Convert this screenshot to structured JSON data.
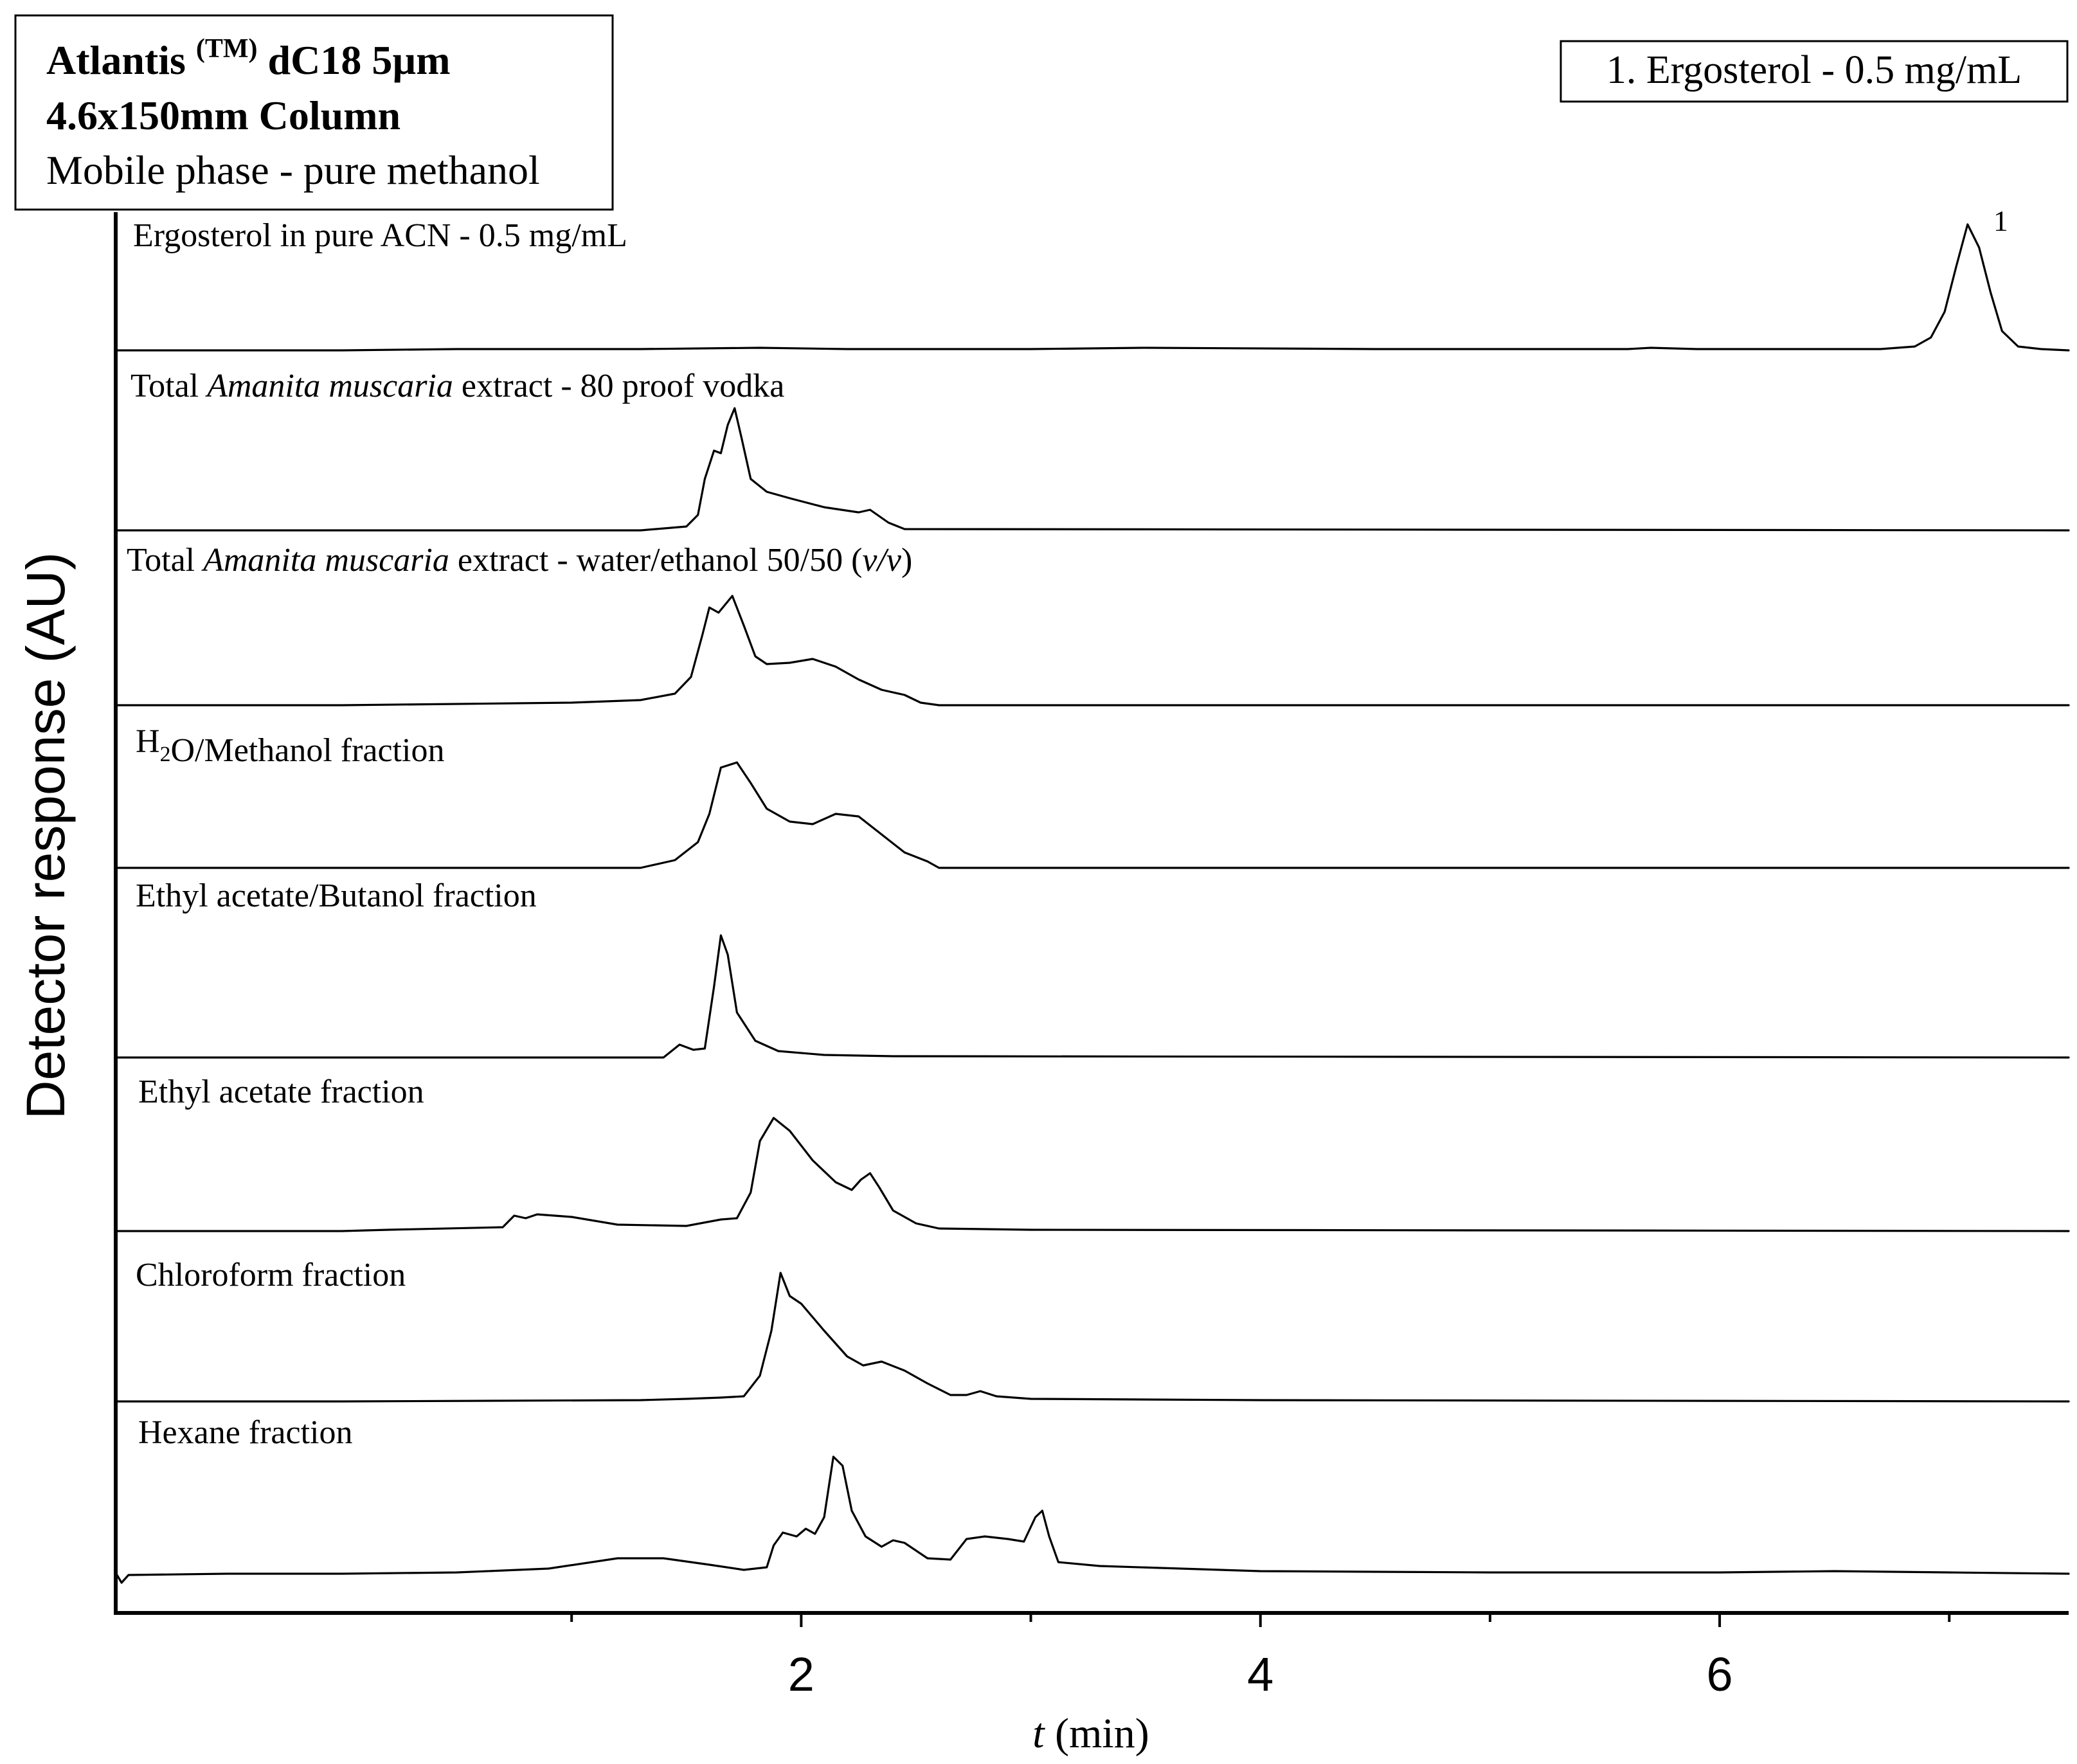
{
  "chart_data": {
    "type": "line",
    "title": "",
    "xlabel_var": "t",
    "xlabel_unit": " (min)",
    "ylabel": "Detector response (AU)",
    "xlim": [
      -0.98,
      7.52
    ],
    "x_ticks": [
      2,
      4,
      6
    ],
    "x_tick_labels": [
      "2",
      "4",
      "6"
    ],
    "x_minor_ticks": [
      1,
      3,
      5,
      7
    ],
    "column_box": {
      "line1_name": "Atlantis ",
      "line1_sup": "(TM)",
      "line1_rest": " dC18 5µm",
      "line2": "4.6x150mm Column",
      "line3": "Mobile phase - pure methanol"
    },
    "legend": {
      "text": "1. Ergosterol - 0.5 mg/mL",
      "placement": "top-right"
    },
    "series": [
      {
        "name": "Ergosterol in pure ACN - 0.5 mg/mL",
        "label_parts": [
          {
            "text": "Ergosterol in pure ACN - 0.5 mg/mL"
          }
        ],
        "peak_label": "1",
        "points": [
          [
            0,
            0
          ],
          [
            0.5,
            0.01
          ],
          [
            1.3,
            0.01
          ],
          [
            1.82,
            0.02
          ],
          [
            2.2,
            0.01
          ],
          [
            3,
            0.01
          ],
          [
            3.5,
            0.02
          ],
          [
            4.5,
            0.01
          ],
          [
            5.6,
            0.01
          ],
          [
            5.7,
            0.02
          ],
          [
            5.9,
            0.01
          ],
          [
            6.7,
            0.01
          ],
          [
            6.85,
            0.03
          ],
          [
            6.92,
            0.1
          ],
          [
            6.98,
            0.3
          ],
          [
            7.03,
            0.65
          ],
          [
            7.08,
            0.98
          ],
          [
            7.13,
            0.8
          ],
          [
            7.18,
            0.45
          ],
          [
            7.23,
            0.15
          ],
          [
            7.3,
            0.03
          ],
          [
            7.4,
            0.01
          ],
          [
            7.52,
            0.0
          ]
        ]
      },
      {
        "name": "Total Amanita muscaria extract - 80 proof vodka",
        "label_parts": [
          {
            "text": "Total "
          },
          {
            "text": "Amanita muscaria",
            "italic": true
          },
          {
            "text": " extract - 80 proof vodka"
          }
        ],
        "peak_label": "",
        "points": [
          [
            0,
            0
          ],
          [
            1.3,
            0
          ],
          [
            1.5,
            0.03
          ],
          [
            1.55,
            0.12
          ],
          [
            1.58,
            0.4
          ],
          [
            1.62,
            0.62
          ],
          [
            1.65,
            0.6
          ],
          [
            1.68,
            0.82
          ],
          [
            1.71,
            0.95
          ],
          [
            1.74,
            0.72
          ],
          [
            1.78,
            0.4
          ],
          [
            1.85,
            0.3
          ],
          [
            1.95,
            0.25
          ],
          [
            2.1,
            0.18
          ],
          [
            2.25,
            0.14
          ],
          [
            2.3,
            0.16
          ],
          [
            2.38,
            0.06
          ],
          [
            2.45,
            0.01
          ],
          [
            7.52,
            0.0
          ]
        ]
      },
      {
        "name": "Total Amanita muscaria extract - water/ethanol 50/50 (v/v)",
        "label_parts": [
          {
            "text": "Total "
          },
          {
            "text": "Amanita muscaria",
            "italic": true
          },
          {
            "text": " extract - water/ethanol 50/50 ("
          },
          {
            "text": "v/v",
            "italic": true
          },
          {
            "text": ")"
          }
        ],
        "peak_label": "",
        "points": [
          [
            0,
            0
          ],
          [
            1.0,
            0.02
          ],
          [
            1.3,
            0.04
          ],
          [
            1.45,
            0.09
          ],
          [
            1.52,
            0.22
          ],
          [
            1.57,
            0.55
          ],
          [
            1.6,
            0.76
          ],
          [
            1.64,
            0.72
          ],
          [
            1.7,
            0.85
          ],
          [
            1.75,
            0.62
          ],
          [
            1.8,
            0.38
          ],
          [
            1.85,
            0.32
          ],
          [
            1.95,
            0.33
          ],
          [
            2.05,
            0.36
          ],
          [
            2.15,
            0.3
          ],
          [
            2.25,
            0.2
          ],
          [
            2.35,
            0.12
          ],
          [
            2.45,
            0.08
          ],
          [
            2.52,
            0.02
          ],
          [
            2.6,
            0.0
          ],
          [
            7.52,
            0.0
          ]
        ]
      },
      {
        "name": "H2O/Methanol fraction",
        "label_parts": [
          {
            "text": "H"
          },
          {
            "text": "2",
            "sub": true
          },
          {
            "text": "O/Methanol fraction"
          }
        ],
        "peak_label": "",
        "points": [
          [
            0,
            0
          ],
          [
            1.3,
            0
          ],
          [
            1.45,
            0.06
          ],
          [
            1.55,
            0.2
          ],
          [
            1.6,
            0.42
          ],
          [
            1.65,
            0.78
          ],
          [
            1.72,
            0.82
          ],
          [
            1.78,
            0.66
          ],
          [
            1.85,
            0.46
          ],
          [
            1.95,
            0.36
          ],
          [
            2.05,
            0.34
          ],
          [
            2.15,
            0.42
          ],
          [
            2.25,
            0.4
          ],
          [
            2.35,
            0.26
          ],
          [
            2.45,
            0.12
          ],
          [
            2.55,
            0.05
          ],
          [
            2.6,
            0.0
          ],
          [
            7.52,
            0.0
          ]
        ]
      },
      {
        "name": "Ethyl acetate/Butanol fraction",
        "label_parts": [
          {
            "text": "Ethyl acetate/Butanol fraction"
          }
        ],
        "peak_label": "",
        "points": [
          [
            0,
            0
          ],
          [
            1.4,
            0
          ],
          [
            1.47,
            0.1
          ],
          [
            1.53,
            0.06
          ],
          [
            1.58,
            0.07
          ],
          [
            1.62,
            0.55
          ],
          [
            1.65,
            0.95
          ],
          [
            1.68,
            0.8
          ],
          [
            1.72,
            0.35
          ],
          [
            1.8,
            0.13
          ],
          [
            1.9,
            0.05
          ],
          [
            2.1,
            0.02
          ],
          [
            2.4,
            0.01
          ],
          [
            7.52,
            0.0
          ]
        ]
      },
      {
        "name": "Ethyl acetate fraction",
        "label_parts": [
          {
            "text": "Ethyl acetate fraction"
          }
        ],
        "peak_label": "",
        "points": [
          [
            0,
            0
          ],
          [
            0.2,
            0.01
          ],
          [
            0.7,
            0.03
          ],
          [
            0.75,
            0.12
          ],
          [
            0.8,
            0.1
          ],
          [
            0.85,
            0.13
          ],
          [
            1.0,
            0.11
          ],
          [
            1.2,
            0.05
          ],
          [
            1.5,
            0.04
          ],
          [
            1.65,
            0.09
          ],
          [
            1.72,
            0.1
          ],
          [
            1.78,
            0.3
          ],
          [
            1.82,
            0.7
          ],
          [
            1.88,
            0.88
          ],
          [
            1.95,
            0.78
          ],
          [
            2.05,
            0.55
          ],
          [
            2.15,
            0.38
          ],
          [
            2.22,
            0.32
          ],
          [
            2.26,
            0.4
          ],
          [
            2.3,
            0.45
          ],
          [
            2.34,
            0.34
          ],
          [
            2.4,
            0.16
          ],
          [
            2.5,
            0.06
          ],
          [
            2.6,
            0.02
          ],
          [
            3.0,
            0.01
          ],
          [
            7.52,
            0.0
          ]
        ]
      },
      {
        "name": "Chloroform fraction",
        "label_parts": [
          {
            "text": "Chloroform fraction"
          }
        ],
        "peak_label": "",
        "points": [
          [
            0,
            0
          ],
          [
            1.3,
            0.01
          ],
          [
            1.5,
            0.02
          ],
          [
            1.65,
            0.03
          ],
          [
            1.75,
            0.04
          ],
          [
            1.82,
            0.2
          ],
          [
            1.87,
            0.55
          ],
          [
            1.91,
            1.0
          ],
          [
            1.95,
            0.82
          ],
          [
            2.0,
            0.76
          ],
          [
            2.1,
            0.55
          ],
          [
            2.2,
            0.35
          ],
          [
            2.27,
            0.28
          ],
          [
            2.35,
            0.31
          ],
          [
            2.45,
            0.24
          ],
          [
            2.55,
            0.14
          ],
          [
            2.65,
            0.05
          ],
          [
            2.72,
            0.05
          ],
          [
            2.78,
            0.08
          ],
          [
            2.85,
            0.04
          ],
          [
            3.0,
            0.02
          ],
          [
            4.0,
            0.01
          ],
          [
            7.52,
            0.0
          ]
        ]
      },
      {
        "name": "Hexane fraction",
        "label_parts": [
          {
            "text": "Hexane fraction"
          }
        ],
        "peak_label": "",
        "points": [
          [
            -0.98,
            0.0
          ],
          [
            -0.96,
            -0.06
          ],
          [
            -0.93,
            0.0
          ],
          [
            -0.5,
            0.01
          ],
          [
            0,
            0.01
          ],
          [
            0.5,
            0.02
          ],
          [
            0.9,
            0.05
          ],
          [
            1.2,
            0.13
          ],
          [
            1.4,
            0.13
          ],
          [
            1.6,
            0.08
          ],
          [
            1.75,
            0.04
          ],
          [
            1.85,
            0.06
          ],
          [
            1.88,
            0.23
          ],
          [
            1.92,
            0.33
          ],
          [
            1.98,
            0.3
          ],
          [
            2.02,
            0.36
          ],
          [
            2.06,
            0.32
          ],
          [
            2.1,
            0.45
          ],
          [
            2.14,
            0.92
          ],
          [
            2.18,
            0.85
          ],
          [
            2.22,
            0.5
          ],
          [
            2.28,
            0.3
          ],
          [
            2.35,
            0.22
          ],
          [
            2.4,
            0.27
          ],
          [
            2.45,
            0.25
          ],
          [
            2.55,
            0.13
          ],
          [
            2.65,
            0.12
          ],
          [
            2.72,
            0.28
          ],
          [
            2.8,
            0.3
          ],
          [
            2.9,
            0.28
          ],
          [
            2.97,
            0.26
          ],
          [
            3.02,
            0.45
          ],
          [
            3.05,
            0.5
          ],
          [
            3.08,
            0.3
          ],
          [
            3.12,
            0.1
          ],
          [
            3.3,
            0.07
          ],
          [
            4.0,
            0.03
          ],
          [
            5.0,
            0.02
          ],
          [
            6.0,
            0.02
          ],
          [
            6.5,
            0.03
          ],
          [
            7.0,
            0.02
          ],
          [
            7.52,
            0.01
          ]
        ]
      }
    ]
  }
}
